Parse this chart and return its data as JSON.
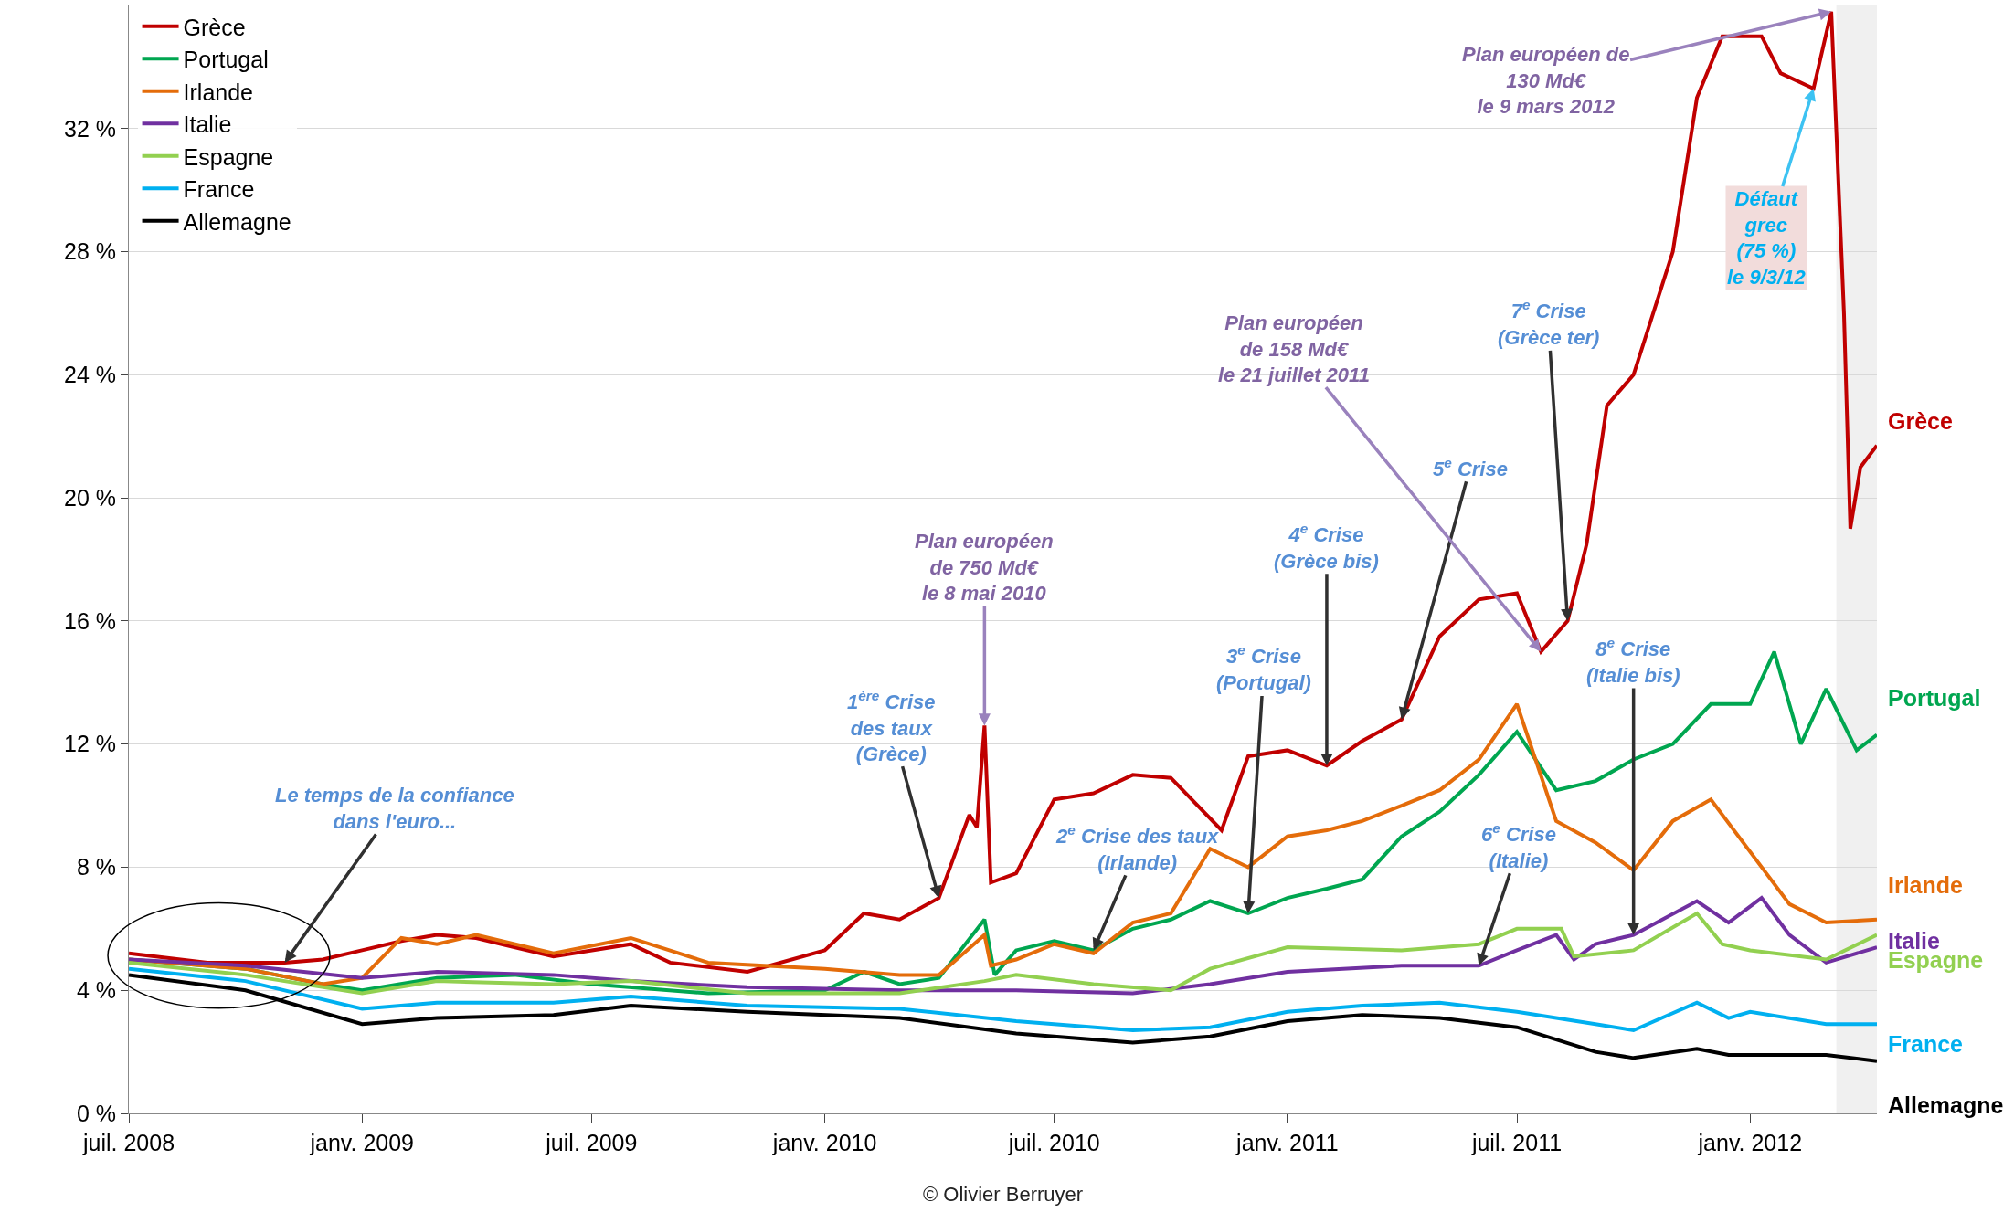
{
  "chart_data": {
    "type": "line",
    "ylim": [
      0,
      36
    ],
    "yticks": [
      {
        "value": 0,
        "label": "0 %"
      },
      {
        "value": 4,
        "label": "4 %"
      },
      {
        "value": 8,
        "label": "8 %"
      },
      {
        "value": 12,
        "label": "12 %"
      },
      {
        "value": 16,
        "label": "16 %"
      },
      {
        "value": 20,
        "label": "20 %"
      },
      {
        "value": 24,
        "label": "24 %"
      },
      {
        "value": 28,
        "label": "28 %"
      },
      {
        "value": 32,
        "label": "32 %"
      }
    ],
    "xlim": [
      "2008-07-01",
      "2012-04-10"
    ],
    "xticks": [
      {
        "value": "2008-07-01",
        "label": "juil. 2008"
      },
      {
        "value": "2009-01-01",
        "label": "janv. 2009"
      },
      {
        "value": "2009-07-01",
        "label": "juil. 2009"
      },
      {
        "value": "2010-01-01",
        "label": "janv. 2010"
      },
      {
        "value": "2010-07-01",
        "label": "juil. 2010"
      },
      {
        "value": "2011-01-01",
        "label": "janv. 2011"
      },
      {
        "value": "2011-07-01",
        "label": "juil. 2011"
      },
      {
        "value": "2012-01-01",
        "label": "janv. 2012"
      }
    ],
    "grid": "y",
    "legend": "top left",
    "line_style": "solid",
    "bands": [
      {
        "axis": "x",
        "from": "2012-03-09",
        "to": "2012-04-10",
        "color": "#f0f0f0"
      }
    ],
    "series": [
      {
        "name": "Grèce",
        "color": "#c00000",
        "x": [
          "2008-07-01",
          "2008-09-01",
          "2008-11-01",
          "2008-12-01",
          "2009-01-01",
          "2009-02-01",
          "2009-03-01",
          "2009-04-01",
          "2009-05-01",
          "2009-06-01",
          "2009-08-01",
          "2009-09-01",
          "2009-11-01",
          "2010-01-01",
          "2010-02-01",
          "2010-03-01",
          "2010-04-01",
          "2010-04-25",
          "2010-05-01",
          "2010-05-07",
          "2010-05-12",
          "2010-06-01",
          "2010-07-01",
          "2010-08-01",
          "2010-09-01",
          "2010-10-01",
          "2010-11-10",
          "2010-12-01",
          "2011-01-01",
          "2011-02-01",
          "2011-03-01",
          "2011-04-01",
          "2011-05-01",
          "2011-06-01",
          "2011-07-01",
          "2011-07-20",
          "2011-08-10",
          "2011-08-25",
          "2011-09-10",
          "2011-10-01",
          "2011-11-01",
          "2011-11-20",
          "2011-12-10",
          "2012-01-10",
          "2012-01-25",
          "2012-02-20",
          "2012-03-05",
          "2012-03-15",
          "2012-03-20",
          "2012-03-28",
          "2012-04-10"
        ],
        "values": [
          5.2,
          4.9,
          4.9,
          5.0,
          5.3,
          5.6,
          5.8,
          5.7,
          5.4,
          5.1,
          5.5,
          4.9,
          4.6,
          5.3,
          6.5,
          6.3,
          7.0,
          9.7,
          9.3,
          12.6,
          7.5,
          7.8,
          10.2,
          10.4,
          11.0,
          10.9,
          9.2,
          11.6,
          11.8,
          11.3,
          12.1,
          12.8,
          15.5,
          16.7,
          16.9,
          15.0,
          16.0,
          18.5,
          23.0,
          24.0,
          28.0,
          33.0,
          35.0,
          35.0,
          33.8,
          33.3,
          35.8,
          26.0,
          19.0,
          21.0,
          21.7
        ]
      },
      {
        "name": "Portugal",
        "color": "#00a650",
        "x": [
          "2008-07-01",
          "2008-10-01",
          "2008-12-01",
          "2009-01-01",
          "2009-03-01",
          "2009-05-01",
          "2009-07-01",
          "2009-10-01",
          "2010-01-01",
          "2010-02-01",
          "2010-03-01",
          "2010-04-01",
          "2010-05-07",
          "2010-05-15",
          "2010-06-01",
          "2010-07-01",
          "2010-08-01",
          "2010-09-01",
          "2010-10-01",
          "2010-11-01",
          "2010-12-01",
          "2011-01-01",
          "2011-02-01",
          "2011-03-01",
          "2011-04-01",
          "2011-05-01",
          "2011-06-01",
          "2011-07-01",
          "2011-08-01",
          "2011-09-01",
          "2011-10-01",
          "2011-11-01",
          "2011-12-01",
          "2012-01-01",
          "2012-01-20",
          "2012-02-10",
          "2012-03-01",
          "2012-03-25",
          "2012-04-10"
        ],
        "values": [
          5.0,
          4.7,
          4.2,
          4.0,
          4.4,
          4.5,
          4.2,
          3.9,
          4.0,
          4.6,
          4.2,
          4.4,
          6.3,
          4.5,
          5.3,
          5.6,
          5.3,
          6.0,
          6.3,
          6.9,
          6.5,
          7.0,
          7.3,
          7.6,
          9.0,
          9.8,
          11.0,
          12.4,
          10.5,
          10.8,
          11.5,
          12.0,
          13.3,
          13.3,
          15.0,
          12.0,
          13.8,
          11.8,
          12.3
        ]
      },
      {
        "name": "Irlande",
        "color": "#e46c0a",
        "x": [
          "2008-07-01",
          "2008-10-01",
          "2008-12-01",
          "2009-01-01",
          "2009-02-01",
          "2009-03-01",
          "2009-04-01",
          "2009-06-01",
          "2009-08-01",
          "2009-10-01",
          "2010-01-01",
          "2010-03-01",
          "2010-04-01",
          "2010-05-07",
          "2010-05-12",
          "2010-06-01",
          "2010-07-01",
          "2010-08-01",
          "2010-09-01",
          "2010-10-01",
          "2010-11-01",
          "2010-12-01",
          "2011-01-01",
          "2011-02-01",
          "2011-03-01",
          "2011-04-01",
          "2011-05-01",
          "2011-06-01",
          "2011-07-01",
          "2011-08-01",
          "2011-09-01",
          "2011-10-01",
          "2011-11-01",
          "2011-12-01",
          "2012-01-01",
          "2012-02-01",
          "2012-03-01",
          "2012-04-10"
        ],
        "values": [
          5.0,
          4.7,
          4.2,
          4.4,
          5.7,
          5.5,
          5.8,
          5.2,
          5.7,
          4.9,
          4.7,
          4.5,
          4.5,
          5.8,
          4.8,
          5.0,
          5.5,
          5.2,
          6.2,
          6.5,
          8.6,
          8.0,
          9.0,
          9.2,
          9.5,
          10.0,
          10.5,
          11.5,
          13.3,
          9.5,
          8.8,
          7.9,
          9.5,
          10.2,
          8.5,
          6.8,
          6.2,
          6.3
        ]
      },
      {
        "name": "Italie",
        "color": "#7030a0",
        "x": [
          "2008-07-01",
          "2008-10-01",
          "2009-01-01",
          "2009-03-01",
          "2009-06-01",
          "2009-08-01",
          "2009-11-01",
          "2010-03-01",
          "2010-06-01",
          "2010-09-01",
          "2010-11-01",
          "2011-01-01",
          "2011-04-01",
          "2011-06-01",
          "2011-07-01",
          "2011-08-01",
          "2011-08-15",
          "2011-09-01",
          "2011-10-01",
          "2011-11-20",
          "2011-12-15",
          "2012-01-10",
          "2012-02-01",
          "2012-03-01",
          "2012-04-10"
        ],
        "values": [
          5.0,
          4.8,
          4.4,
          4.6,
          4.5,
          4.3,
          4.1,
          4.0,
          4.0,
          3.9,
          4.2,
          4.6,
          4.8,
          4.8,
          5.3,
          5.8,
          5.0,
          5.5,
          5.8,
          6.9,
          6.2,
          7.0,
          5.8,
          4.9,
          5.4
        ]
      },
      {
        "name": "Espagne",
        "color": "#92d050",
        "x": [
          "2008-07-01",
          "2008-10-01",
          "2009-01-01",
          "2009-03-01",
          "2009-06-01",
          "2009-08-01",
          "2009-11-01",
          "2010-03-01",
          "2010-05-07",
          "2010-06-01",
          "2010-08-01",
          "2010-10-01",
          "2010-11-01",
          "2011-01-01",
          "2011-04-01",
          "2011-06-01",
          "2011-07-01",
          "2011-08-05",
          "2011-08-15",
          "2011-10-01",
          "2011-11-20",
          "2011-12-10",
          "2012-01-01",
          "2012-03-01",
          "2012-04-10"
        ],
        "values": [
          4.9,
          4.5,
          3.9,
          4.3,
          4.2,
          4.3,
          3.9,
          3.9,
          4.3,
          4.5,
          4.2,
          4.0,
          4.7,
          5.4,
          5.3,
          5.5,
          6.0,
          6.0,
          5.1,
          5.3,
          6.5,
          5.5,
          5.3,
          5.0,
          5.8
        ]
      },
      {
        "name": "France",
        "color": "#00b0f0",
        "x": [
          "2008-07-01",
          "2008-10-01",
          "2009-01-01",
          "2009-03-01",
          "2009-06-01",
          "2009-08-01",
          "2009-11-01",
          "2010-03-01",
          "2010-06-01",
          "2010-09-01",
          "2010-11-01",
          "2011-01-01",
          "2011-03-01",
          "2011-05-01",
          "2011-07-01",
          "2011-09-01",
          "2011-10-01",
          "2011-11-20",
          "2011-12-15",
          "2012-01-01",
          "2012-03-01",
          "2012-04-10"
        ],
        "values": [
          4.7,
          4.3,
          3.4,
          3.6,
          3.6,
          3.8,
          3.5,
          3.4,
          3.0,
          2.7,
          2.8,
          3.3,
          3.5,
          3.6,
          3.3,
          2.9,
          2.7,
          3.6,
          3.1,
          3.3,
          2.9,
          2.9
        ]
      },
      {
        "name": "Allemagne",
        "color": "#000000",
        "x": [
          "2008-07-01",
          "2008-10-01",
          "2009-01-01",
          "2009-03-01",
          "2009-06-01",
          "2009-08-01",
          "2009-11-01",
          "2010-03-01",
          "2010-06-01",
          "2010-09-01",
          "2010-11-01",
          "2011-01-01",
          "2011-03-01",
          "2011-05-01",
          "2011-07-01",
          "2011-09-01",
          "2011-10-01",
          "2011-11-20",
          "2011-12-15",
          "2012-01-01",
          "2012-03-01",
          "2012-04-10"
        ],
        "values": [
          4.5,
          4.0,
          2.9,
          3.1,
          3.2,
          3.5,
          3.3,
          3.1,
          2.6,
          2.3,
          2.5,
          3.0,
          3.2,
          3.1,
          2.8,
          2.0,
          1.8,
          2.1,
          1.9,
          1.9,
          1.9,
          1.7
        ]
      }
    ],
    "annotations": [
      {
        "text": "Le temps de la confiance\ndans l'euro...",
        "x": "2008-11-01",
        "y": 4.9
      },
      {
        "text": "1$^{ère}$ Crise\ndes taux\n(Grèce)",
        "x": "2010-04-01",
        "y": 7.0
      },
      {
        "text": "Plan européen\nde 750 Md€\nle 8 mai 2010",
        "x": "2010-05-07",
        "y": 12.6
      },
      {
        "text": "2$^{e}$ Crise des taux\n(Irlande)",
        "x": "2010-08-01",
        "y": 5.3
      },
      {
        "text": "3$^{e}$ Crise\n(Portugal)",
        "x": "2010-12-01",
        "y": 6.5
      },
      {
        "text": "4$^{e}$ Crise\n(Grèce bis)",
        "x": "2011-02-01",
        "y": 11.3
      },
      {
        "text": "5$^{e}$ Crise",
        "x": "2011-04-01",
        "y": 12.8
      },
      {
        "text": "Plan européen\nde 158 Md€\nle 21 juillet 2011",
        "x": "2011-07-20",
        "y": 15.0
      },
      {
        "text": "7$^{e}$ Crise\n(Grèce ter)",
        "x": "2011-08-10",
        "y": 16.0
      },
      {
        "text": "6$^{e}$ Crise\n(Italie)",
        "x": "2011-06-01",
        "y": 4.8
      },
      {
        "text": "8$^{e}$ Crise\n(Italie bis)",
        "x": "2011-10-01",
        "y": 5.8
      },
      {
        "text": "Plan européen de\n130 Md€\nle 9 mars 2012",
        "x": "2012-03-05",
        "y": 35.8
      },
      {
        "text": "Défaut\ngrec\n(75 %)\nle 9/3/12",
        "x": "2012-02-20",
        "y": 33.3
      },
      "© Olivier Berruyer"
    ]
  }
}
